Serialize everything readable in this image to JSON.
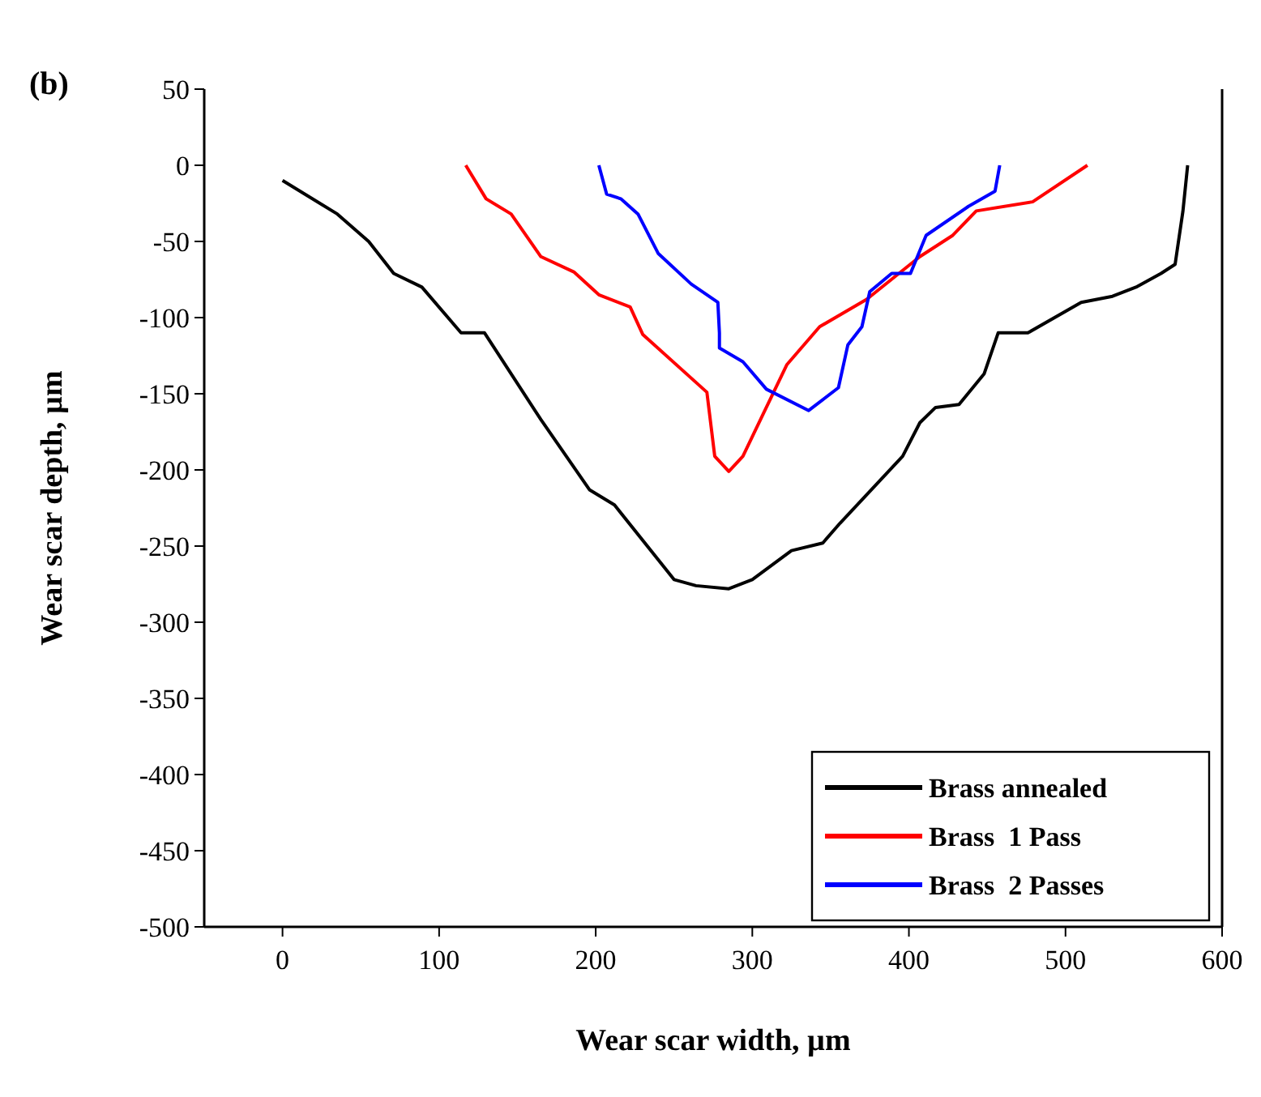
{
  "chart_data": {
    "type": "line",
    "title": "(b)",
    "xlabel": "Wear scar width, µm",
    "ylabel": "Wear scar depth, µm",
    "xlim": [
      -50,
      600
    ],
    "xticks": [
      0,
      100,
      200,
      300,
      400,
      500,
      600
    ],
    "ylim": [
      -500,
      50
    ],
    "yticks": [
      -500,
      -450,
      -400,
      -350,
      -300,
      -250,
      -200,
      -150,
      -100,
      -50,
      0,
      50
    ],
    "legend": "bottom right",
    "grid": false,
    "marker": "none",
    "line_style": "solid",
    "series": [
      {
        "name": "Brass annealed",
        "color": "#000000",
        "x": [
          0,
          35,
          55,
          71,
          89,
          114,
          129,
          165,
          196,
          212,
          250,
          264,
          285,
          300,
          325,
          345,
          356,
          396,
          407,
          417,
          432,
          448,
          457,
          476,
          510,
          530,
          545,
          561,
          570,
          575,
          578
        ],
        "values": [
          -10,
          -32,
          -50,
          -71,
          -80,
          -110,
          -110,
          -167,
          -213,
          -223,
          -272,
          -276,
          -278,
          -272,
          -253,
          -248,
          -235,
          -191,
          -169,
          -159,
          -157,
          -137,
          -110,
          -110,
          -90,
          -86,
          -80,
          -71,
          -65,
          -30,
          0
        ]
      },
      {
        "name": "Brass  1 Pass",
        "color": "#ff0000",
        "x": [
          117,
          130,
          146,
          165,
          186,
          202,
          222,
          230,
          271,
          276,
          285,
          294,
          322,
          343,
          373,
          407,
          428,
          443,
          479,
          514
        ],
        "values": [
          0,
          -22,
          -32,
          -60,
          -70,
          -85,
          -93,
          -111,
          -149,
          -191,
          -201,
          -191,
          -131,
          -106,
          -88,
          -60,
          -46,
          -30,
          -24,
          0
        ]
      },
      {
        "name": "Brass  2 Passes",
        "color": "#0000ff",
        "x": [
          202,
          207,
          216,
          227,
          240,
          261,
          278,
          279,
          279,
          294,
          309,
          336,
          355,
          361,
          370,
          375,
          389,
          401,
          411,
          438,
          455,
          458
        ],
        "values": [
          0,
          -19,
          -22,
          -32,
          -58,
          -78,
          -90,
          -110,
          -120,
          -129,
          -147,
          -161,
          -146,
          -118,
          -106,
          -83,
          -71,
          -71,
          -46,
          -27,
          -17,
          0
        ]
      }
    ]
  }
}
